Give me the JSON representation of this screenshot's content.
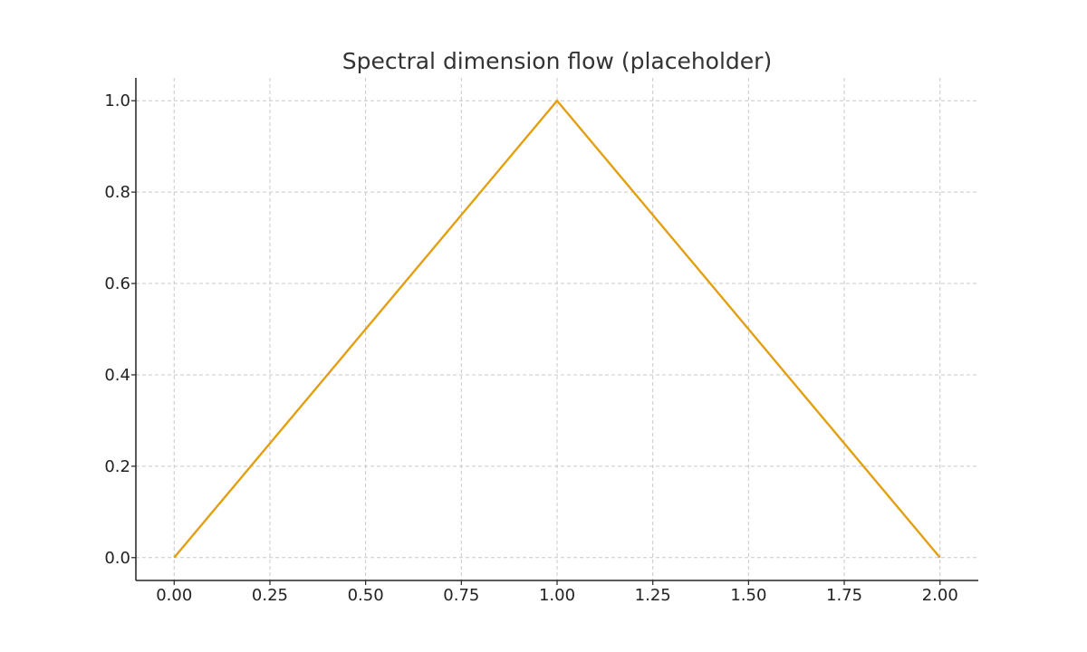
{
  "chart_data": {
    "type": "line",
    "title": "Spectral dimension flow (placeholder)",
    "xlabel": "",
    "ylabel": "",
    "xlim": [
      -0.1,
      2.1
    ],
    "ylim": [
      -0.05,
      1.05
    ],
    "xticks": [
      0.0,
      0.25,
      0.5,
      0.75,
      1.0,
      1.25,
      1.5,
      1.75,
      2.0
    ],
    "xtick_labels": [
      "0.00",
      "0.25",
      "0.50",
      "0.75",
      "1.00",
      "1.25",
      "1.50",
      "1.75",
      "2.00"
    ],
    "yticks": [
      0.0,
      0.2,
      0.4,
      0.6,
      0.8,
      1.0
    ],
    "ytick_labels": [
      "0.0",
      "0.2",
      "0.4",
      "0.6",
      "0.8",
      "1.0"
    ],
    "grid": true,
    "grid_style": "dashed",
    "series": [
      {
        "x": [
          0.0,
          1.0,
          2.0
        ],
        "y": [
          0.0,
          1.0,
          0.0
        ],
        "color": "#E1A012"
      }
    ]
  }
}
